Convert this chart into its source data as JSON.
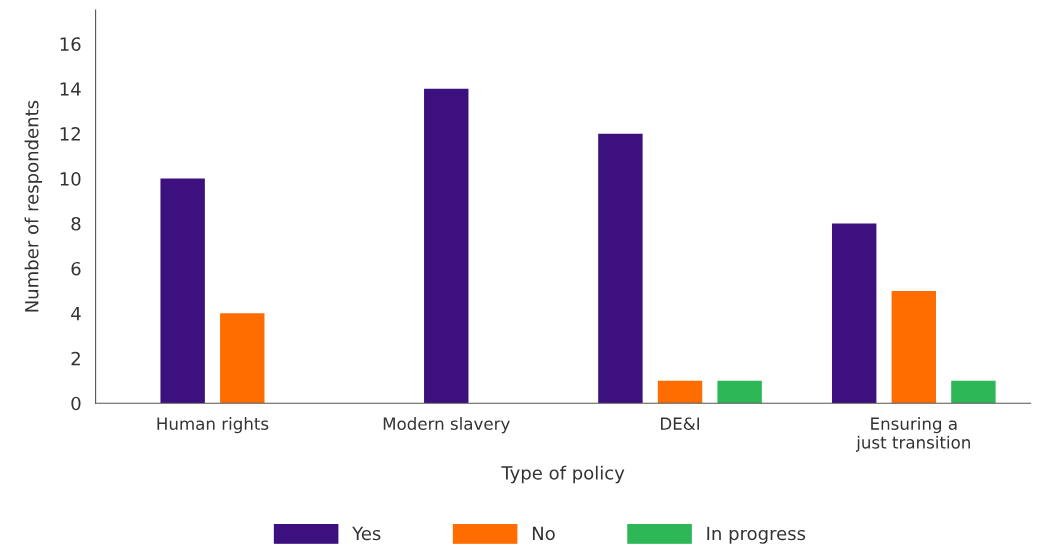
{
  "chart_data": {
    "type": "bar",
    "xlabel": "Type of policy",
    "ylabel": "Number of respondents",
    "categories": [
      "Human rights",
      "Modern slavery",
      "DE&I",
      "Ensuring a\njust transition"
    ],
    "series": [
      {
        "name": "Yes",
        "color": "#3d1080",
        "values": [
          10,
          14,
          12,
          8
        ]
      },
      {
        "name": "No",
        "color": "#ff6d00",
        "values": [
          4,
          null,
          1,
          5
        ]
      },
      {
        "name": "In progress",
        "color": "#2db757",
        "values": [
          null,
          null,
          1,
          1
        ]
      }
    ],
    "ylim": [
      0,
      17.5
    ],
    "yticks": [
      0,
      2,
      4,
      6,
      8,
      10,
      12,
      14,
      16
    ],
    "grid": false,
    "legend": "bottom"
  }
}
